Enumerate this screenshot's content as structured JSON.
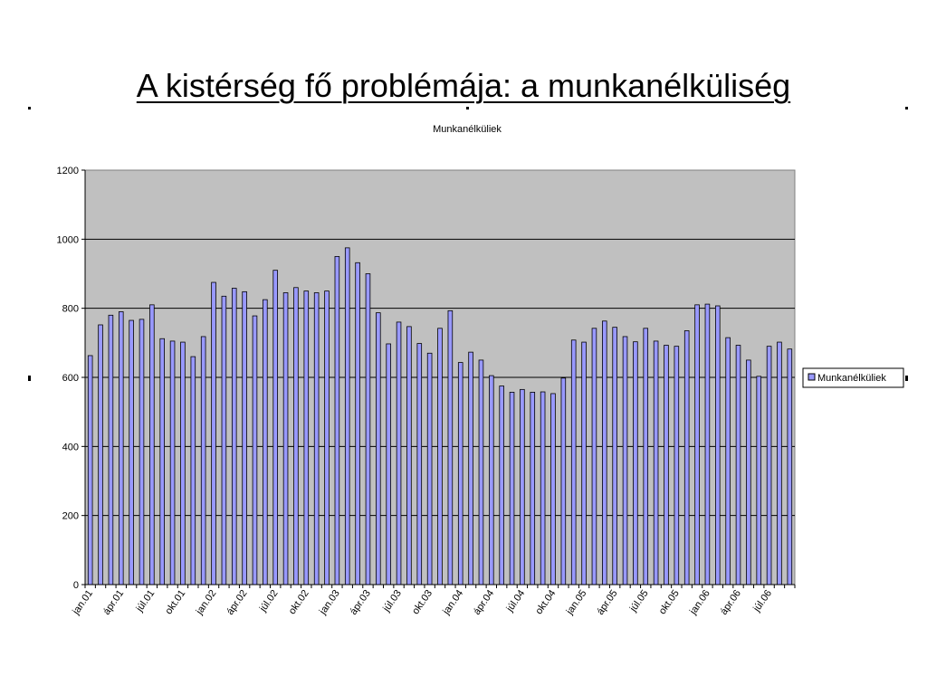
{
  "slide": {
    "title": "A kistérség fő problémája: a munkanélküliség"
  },
  "chart_data": {
    "type": "bar",
    "title": "Munkanélküliek",
    "xlabel": "",
    "ylabel": "",
    "ylim": [
      0,
      1200
    ],
    "yticks": [
      0,
      200,
      400,
      600,
      800,
      1000,
      1200
    ],
    "grid": true,
    "legend_position": "right",
    "plot_background": "#c0c0c0",
    "bar_color": "#9999ff",
    "x_tick_labels": [
      "jan.01",
      "ápr.01",
      "júl.01",
      "okt.01",
      "jan.02",
      "ápr.02",
      "júl.02",
      "okt.02",
      "jan.03",
      "ápr.03",
      "júl.03",
      "okt.03",
      "jan.04",
      "ápr.04",
      "júl.04",
      "okt.04",
      "jan.05",
      "ápr.05",
      "júl.05",
      "okt.05",
      "jan.06",
      "ápr.06",
      "júl.06"
    ],
    "series": [
      {
        "name": "Munkanélküliek",
        "values": [
          663,
          752,
          780,
          790,
          765,
          768,
          810,
          712,
          705,
          702,
          660,
          718,
          875,
          835,
          858,
          848,
          778,
          825,
          910,
          845,
          860,
          850,
          845,
          850,
          950,
          975,
          932,
          900,
          787,
          697,
          760,
          747,
          698,
          670,
          742,
          793,
          643,
          673,
          650,
          605,
          575,
          557,
          565,
          557,
          558,
          553,
          598,
          708,
          702,
          742,
          763,
          745,
          718,
          703,
          742,
          705,
          693,
          690,
          735,
          810,
          812,
          807,
          715,
          693,
          650,
          603,
          690,
          702,
          682
        ]
      }
    ]
  }
}
